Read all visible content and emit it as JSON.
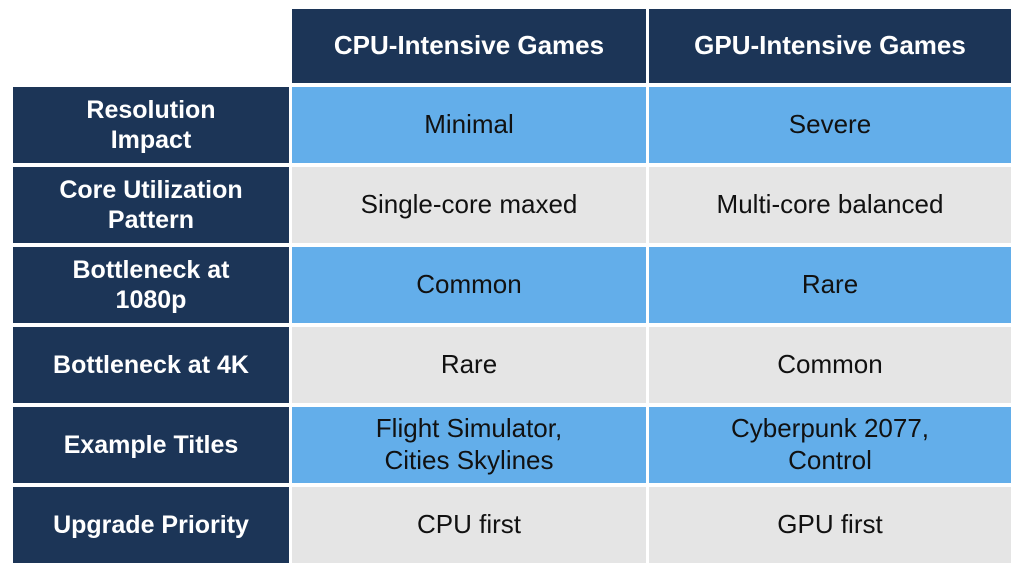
{
  "colors": {
    "header_bg": "#1c3557",
    "header_text": "#ffffff",
    "row_blue": "#63aeea",
    "row_gray": "#e5e5e5",
    "cell_text": "#111111"
  },
  "table": {
    "columns": [
      "CPU-Intensive Games",
      "GPU-Intensive Games"
    ],
    "rows": [
      {
        "label": "Resolution Impact",
        "cpu": "Minimal",
        "gpu": "Severe"
      },
      {
        "label": "Core Utilization Pattern",
        "cpu": "Single-core maxed",
        "gpu": "Multi-core balanced"
      },
      {
        "label": "Bottleneck at 1080p",
        "cpu": "Common",
        "gpu": "Rare"
      },
      {
        "label": "Bottleneck at 4K",
        "cpu": "Rare",
        "gpu": "Common"
      },
      {
        "label": "Example Titles",
        "cpu": "Flight Simulator, Cities Skylines",
        "gpu": "Cyberpunk 2077, Control"
      },
      {
        "label": "Upgrade Priority",
        "cpu": "CPU first",
        "gpu": "GPU first"
      }
    ]
  }
}
